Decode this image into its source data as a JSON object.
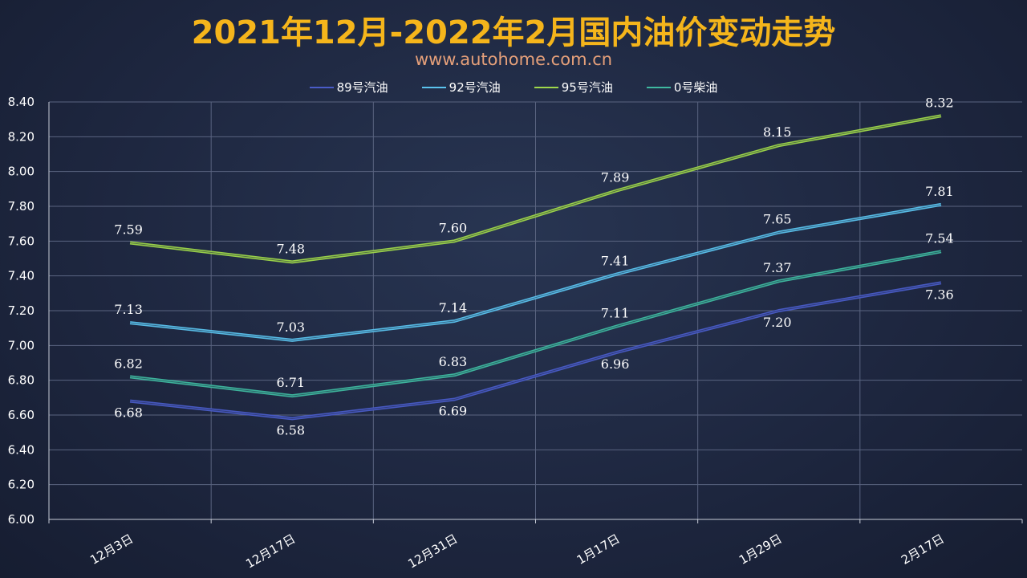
{
  "title": "2021年12月-2022年2月国内油价变动走势",
  "subtitle": "www.autohome.com.cn",
  "colors": {
    "title": "#f5b51b",
    "subtitle": "#e6a07a",
    "grid": "#5a6480"
  },
  "chart_data": {
    "type": "line",
    "categories": [
      "12月3日",
      "12月17日",
      "12月31日",
      "1月17日",
      "1月29日",
      "2月17日"
    ],
    "ylim": [
      6.0,
      8.4
    ],
    "yticks": [
      "6.00",
      "6.20",
      "6.40",
      "6.60",
      "6.80",
      "7.00",
      "7.20",
      "7.40",
      "7.60",
      "7.80",
      "8.00",
      "8.20",
      "8.40"
    ],
    "grid": true,
    "legend_position": "top",
    "series": [
      {
        "name": "89号汽油",
        "color": "#4a5cc8",
        "values": [
          6.68,
          6.58,
          6.69,
          6.96,
          7.2,
          7.36
        ],
        "labels": [
          "6.68",
          "6.58",
          "6.69",
          "6.96",
          "7.20",
          "7.36"
        ],
        "label_position": "below"
      },
      {
        "name": "92号汽油",
        "color": "#5bc3ee",
        "values": [
          7.13,
          7.03,
          7.14,
          7.41,
          7.65,
          7.81
        ],
        "labels": [
          "7.13",
          "7.03",
          "7.14",
          "7.41",
          "7.65",
          "7.81"
        ],
        "label_position": "above"
      },
      {
        "name": "95号汽油",
        "color": "#9fd84a",
        "values": [
          7.59,
          7.48,
          7.6,
          7.89,
          8.15,
          8.32
        ],
        "labels": [
          "7.59",
          "7.48",
          "7.60",
          "7.89",
          "8.15",
          "8.32"
        ],
        "label_position": "above"
      },
      {
        "name": "0号柴油",
        "color": "#3fb9a0",
        "values": [
          6.82,
          6.71,
          6.83,
          7.11,
          7.37,
          7.54
        ],
        "labels": [
          "6.82",
          "6.71",
          "6.83",
          "7.11",
          "7.37",
          "7.54"
        ],
        "label_position": "above"
      }
    ]
  }
}
